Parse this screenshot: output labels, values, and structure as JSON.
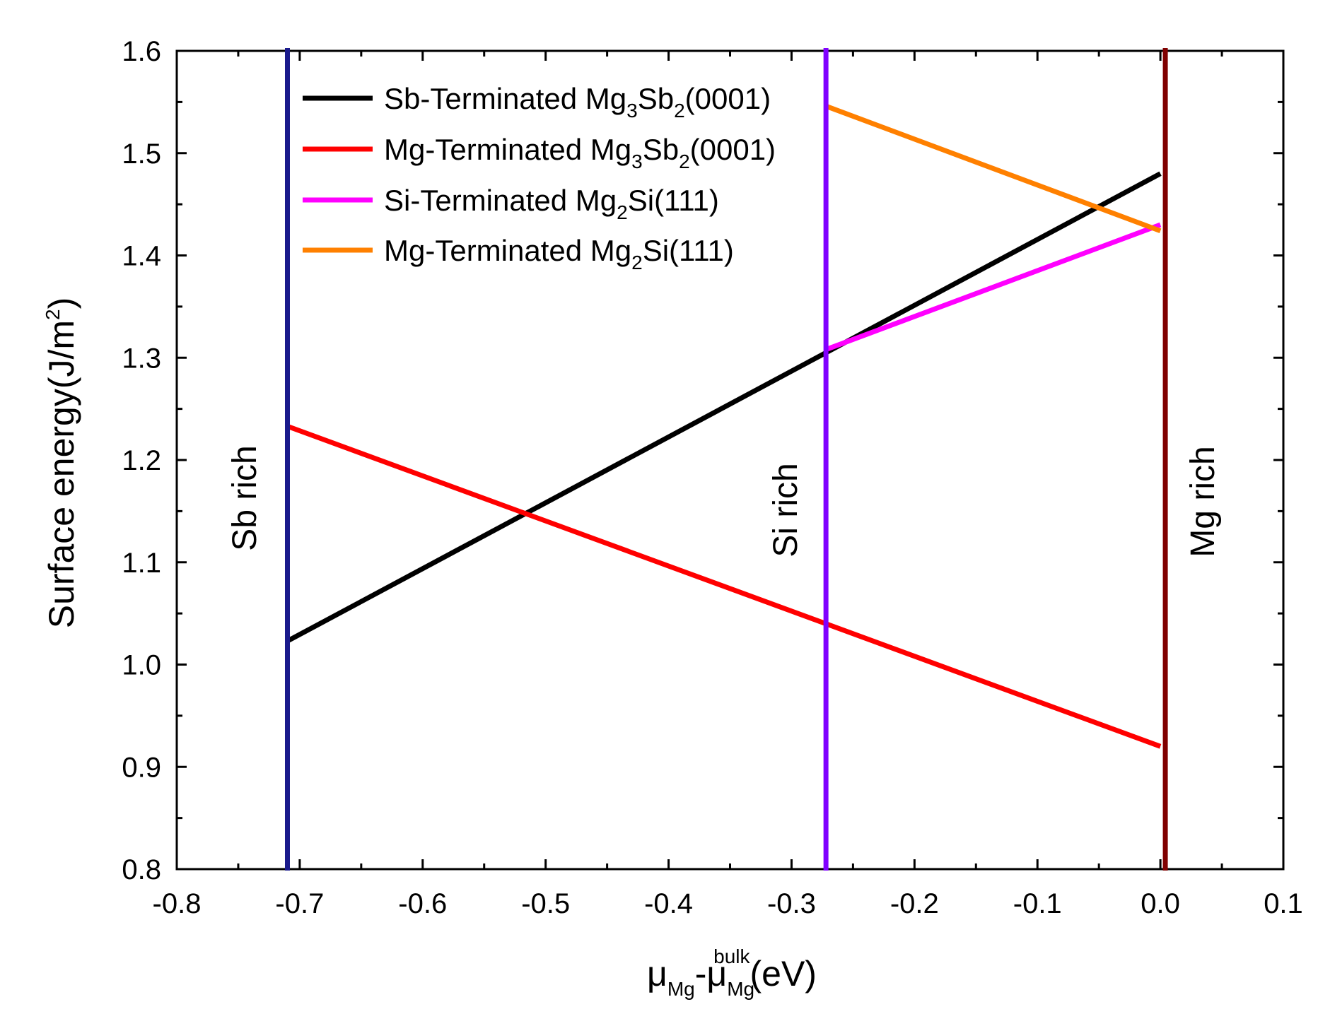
{
  "chart_data": {
    "type": "line",
    "title": "",
    "xlabel": {
      "main": "μ",
      "sub1": "Mg",
      "mid": "-μ",
      "sub2": "Mg",
      "sup2": "bulk",
      "tail": "(eV)"
    },
    "ylabel": {
      "main": "Surface energy(J/m",
      "sup": "2",
      "tail": ")"
    },
    "xlim": [
      -0.8,
      0.1
    ],
    "ylim": [
      0.8,
      1.6
    ],
    "xticks": [
      -0.8,
      -0.7,
      -0.6,
      -0.5,
      -0.4,
      -0.3,
      -0.2,
      -0.1,
      0.0,
      0.1
    ],
    "xtick_labels": [
      "-0.8",
      "-0.7",
      "-0.6",
      "-0.5",
      "-0.4",
      "-0.3",
      "-0.2",
      "-0.1",
      "0.0",
      "0.1"
    ],
    "yticks": [
      0.8,
      0.9,
      1.0,
      1.1,
      1.2,
      1.3,
      1.4,
      1.5,
      1.6
    ],
    "ytick_labels": [
      "0.8",
      "0.9",
      "1.0",
      "1.1",
      "1.2",
      "1.3",
      "1.4",
      "1.5",
      "1.6"
    ],
    "series": [
      {
        "name": "Sb-Terminated Mg3Sb2(0001)",
        "color": "#000000",
        "label_parts": {
          "a": "Sb-Terminated Mg",
          "s1": "3",
          "b": "Sb",
          "s2": "2",
          "c": "(0001)"
        },
        "x": [
          -0.71,
          0.0
        ],
        "y": [
          1.023,
          1.48
        ]
      },
      {
        "name": "Mg-Terminated Mg3Sb2(0001)",
        "color": "#ff0000",
        "label_parts": {
          "a": "Mg-Terminated Mg",
          "s1": "3",
          "b": "Sb",
          "s2": "2",
          "c": "(0001)"
        },
        "x": [
          -0.71,
          0.0
        ],
        "y": [
          1.233,
          0.92
        ]
      },
      {
        "name": "Si-Terminated Mg2Si(111)",
        "color": "#ff00ff",
        "label_parts": {
          "a": "Si-Terminated Mg",
          "s1": "2",
          "b": "Si(111)",
          "s2": "",
          "c": ""
        },
        "x": [
          -0.272,
          0.0
        ],
        "y": [
          1.308,
          1.43
        ]
      },
      {
        "name": "Mg-Terminated Mg2Si(111)",
        "color": "#ff8000",
        "label_parts": {
          "a": "Mg-Terminated Mg",
          "s1": "2",
          "b": "Si(111)",
          "s2": "",
          "c": ""
        },
        "x": [
          -0.272,
          0.0
        ],
        "y": [
          1.546,
          1.424
        ]
      }
    ],
    "vlines": [
      {
        "name": "Sb rich",
        "x": -0.71,
        "color": "#1a1a8c"
      },
      {
        "name": "Si rich",
        "x": -0.272,
        "color": "#8000ff"
      },
      {
        "name": "Mg rich",
        "x": 0.004,
        "color": "#800000"
      }
    ],
    "region_labels": [
      "Sb rich",
      "Si rich",
      "Mg rich"
    ],
    "legend_position": "top-left"
  }
}
